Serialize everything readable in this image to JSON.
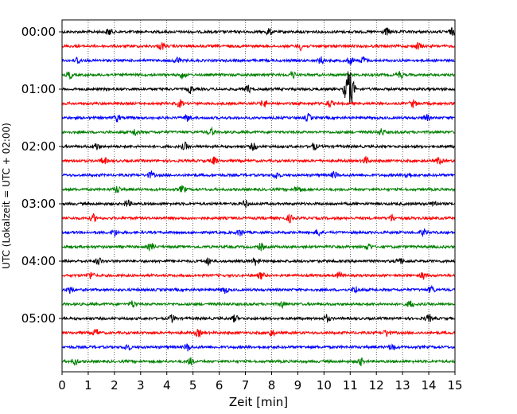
{
  "chart_data": {
    "type": "line",
    "title": "",
    "xlabel": "Zeit  [min]",
    "ylabel": "UTC (Lokalzeit = UTC + 02:00)",
    "xlim": [
      0,
      15
    ],
    "x_ticks": [
      "0",
      "1",
      "2",
      "3",
      "4",
      "5",
      "6",
      "7",
      "8",
      "9",
      "10",
      "11",
      "12",
      "13",
      "14",
      "15"
    ],
    "vertical_grid": "dotted, at every minute",
    "trace_count": 24,
    "trace_interval_minutes": 15,
    "y_ticks": [
      "00:00",
      "01:00",
      "02:00",
      "03:00",
      "04:00",
      "05:00"
    ],
    "color_cycle": [
      "#000000",
      "#ff0000",
      "#0000ff",
      "#008000"
    ],
    "traces": [
      {
        "start": "00:00",
        "color": "#000000",
        "bursts_min": [
          1.8,
          7.9,
          12.4,
          14.9
        ]
      },
      {
        "start": "00:15",
        "color": "#ff0000",
        "bursts_min": [
          3.8,
          9.1,
          13.6
        ]
      },
      {
        "start": "00:30",
        "color": "#0000ff",
        "bursts_min": [
          0.6,
          4.4,
          9.9,
          11.0,
          11.5
        ]
      },
      {
        "start": "00:45",
        "color": "#008000",
        "bursts_min": [
          0.3,
          4.6,
          8.8,
          12.9
        ]
      },
      {
        "start": "01:00",
        "color": "#000000",
        "bursts_min": [
          4.9,
          7.1,
          10.9,
          11.1
        ]
      },
      {
        "start": "01:15",
        "color": "#ff0000",
        "bursts_min": [
          4.5,
          7.7,
          10.2,
          13.4
        ]
      },
      {
        "start": "01:30",
        "color": "#0000ff",
        "bursts_min": [
          2.1,
          4.8,
          9.4,
          13.9
        ]
      },
      {
        "start": "01:45",
        "color": "#008000",
        "bursts_min": [
          2.8,
          5.7,
          12.2
        ]
      },
      {
        "start": "02:00",
        "color": "#000000",
        "bursts_min": [
          1.3,
          4.7,
          7.3,
          9.6
        ]
      },
      {
        "start": "02:15",
        "color": "#ff0000",
        "bursts_min": [
          1.6,
          5.8,
          11.6,
          14.4
        ]
      },
      {
        "start": "02:30",
        "color": "#0000ff",
        "bursts_min": [
          3.4,
          8.2,
          10.4,
          13.2
        ]
      },
      {
        "start": "02:45",
        "color": "#008000",
        "bursts_min": [
          2.1,
          4.6,
          9.0
        ]
      },
      {
        "start": "03:00",
        "color": "#000000",
        "bursts_min": [
          2.5,
          7.0,
          14.2
        ]
      },
      {
        "start": "03:15",
        "color": "#ff0000",
        "bursts_min": [
          1.2,
          8.7,
          12.6
        ]
      },
      {
        "start": "03:30",
        "color": "#0000ff",
        "bursts_min": [
          2.0,
          6.8,
          9.8,
          13.8
        ]
      },
      {
        "start": "03:45",
        "color": "#008000",
        "bursts_min": [
          3.4,
          7.6,
          11.7
        ]
      },
      {
        "start": "04:00",
        "color": "#000000",
        "bursts_min": [
          1.4,
          5.6,
          7.4,
          12.9
        ]
      },
      {
        "start": "04:15",
        "color": "#ff0000",
        "bursts_min": [
          1.1,
          7.6,
          10.6,
          13.8
        ]
      },
      {
        "start": "04:30",
        "color": "#0000ff",
        "bursts_min": [
          0.3,
          6.2,
          11.2,
          14.1
        ]
      },
      {
        "start": "04:45",
        "color": "#008000",
        "bursts_min": [
          2.7,
          8.4,
          13.3
        ]
      },
      {
        "start": "05:00",
        "color": "#000000",
        "bursts_min": [
          4.2,
          6.6,
          10.1,
          14.0
        ]
      },
      {
        "start": "05:15",
        "color": "#ff0000",
        "bursts_min": [
          1.3,
          5.2,
          8.0,
          12.4
        ]
      },
      {
        "start": "05:30",
        "color": "#0000ff",
        "bursts_min": [
          2.5,
          4.8,
          12.6
        ]
      },
      {
        "start": "05:45",
        "color": "#008000",
        "bursts_min": [
          0.5,
          4.9,
          11.4
        ]
      }
    ]
  }
}
